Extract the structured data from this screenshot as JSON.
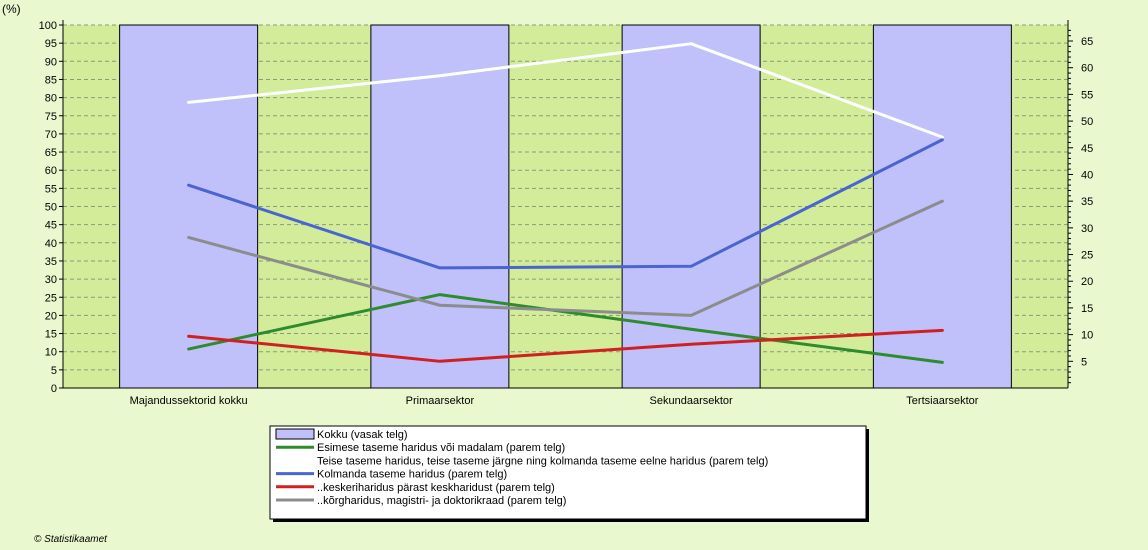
{
  "corner_label": "(%)",
  "credit": "© Statistikaamet",
  "colors": {
    "background": "#eaf8d0",
    "plot_band": "#d2ec9a",
    "bar_fill": "#c0c0fa",
    "bar_stroke": "#000000",
    "grid": "#8a9a7a"
  },
  "chart_data": {
    "type": "bar",
    "categories": [
      "Majandussektorid kokku",
      "Primaarsektor",
      "Sekundaarsektor",
      "Tertsiaarsektor"
    ],
    "left_axis": {
      "min": 0,
      "max": 100,
      "step": 5
    },
    "right_axis": {
      "min": 0,
      "max": 68,
      "ticks": [
        5,
        10,
        15,
        20,
        25,
        30,
        35,
        40,
        45,
        50,
        55,
        60,
        65
      ]
    },
    "grid": true,
    "legend_position": "bottom",
    "bars": {
      "name": "Kokku (vasak telg)",
      "color": "#c0c0fa",
      "values": [
        100,
        100,
        100,
        100
      ]
    },
    "series": [
      {
        "name": "Esimese taseme haridus või madalam (parem telg)",
        "color": "#2e8b2e",
        "axis": "right",
        "values": [
          7.3,
          17.5,
          11,
          4.8
        ]
      },
      {
        "name": "Teise taseme haridus, teise taseme järgne ning kolmanda taseme eelne haridus (parem telg)",
        "color": "#ffffff",
        "axis": "right",
        "values": [
          53.5,
          58.5,
          64.5,
          47
        ]
      },
      {
        "name": "Kolmanda taseme haridus (parem telg)",
        "color": "#4a64d0",
        "axis": "right",
        "values": [
          38,
          22.5,
          22.8,
          46.5
        ]
      },
      {
        "name": "..keskeriharidus pärast keskharidust (parem telg)",
        "color": "#d02020",
        "axis": "right",
        "values": [
          9.7,
          5,
          8.2,
          10.8
        ]
      },
      {
        "name": "..kõrgharidus, magistri- ja doktorikraad (parem telg)",
        "color": "#8c8c8c",
        "axis": "right",
        "values": [
          28.2,
          15.5,
          13.6,
          35
        ]
      }
    ]
  }
}
